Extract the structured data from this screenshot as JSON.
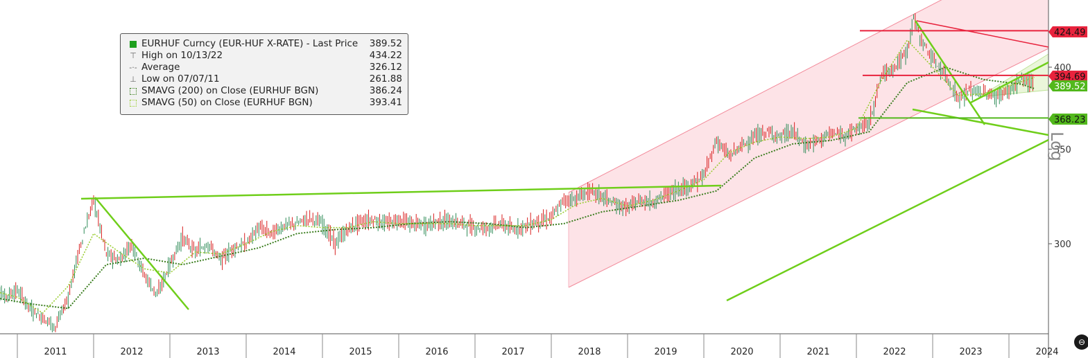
{
  "chart_data": {
    "type": "line",
    "title": "EURHUF Curncy (EUR-HUF X-RATE)",
    "y_scale": "log",
    "ylim": [
      255,
      450
    ],
    "y_ticks": [
      300,
      350,
      400
    ],
    "x_ticks": [
      "2011",
      "2012",
      "2013",
      "2014",
      "2015",
      "2016",
      "2017",
      "2018",
      "2019",
      "2020",
      "2021",
      "2022",
      "2023",
      "2024"
    ],
    "axis_scale_label": "Log",
    "series": [
      {
        "name": "EURHUF Curncy (EUR-HUF X-RATE) - Last Price",
        "color": "#d81e1e",
        "x": [
          "2010-09",
          "2010-11",
          "2011-01",
          "2011-03",
          "2011-05",
          "2011-07",
          "2011-09",
          "2011-11",
          "2012-01",
          "2012-03",
          "2012-05",
          "2012-07",
          "2012-09",
          "2012-11",
          "2013-01",
          "2013-03",
          "2013-05",
          "2013-07",
          "2013-09",
          "2013-11",
          "2014-01",
          "2014-03",
          "2014-05",
          "2014-07",
          "2014-09",
          "2014-11",
          "2015-01",
          "2015-03",
          "2015-05",
          "2015-07",
          "2015-09",
          "2015-11",
          "2016-01",
          "2016-03",
          "2016-05",
          "2016-07",
          "2016-09",
          "2016-11",
          "2017-01",
          "2017-03",
          "2017-05",
          "2017-07",
          "2017-09",
          "2017-11",
          "2018-01",
          "2018-03",
          "2018-05",
          "2018-07",
          "2018-09",
          "2018-11",
          "2019-01",
          "2019-03",
          "2019-05",
          "2019-07",
          "2019-09",
          "2019-11",
          "2020-01",
          "2020-03",
          "2020-05",
          "2020-07",
          "2020-09",
          "2020-11",
          "2021-01",
          "2021-03",
          "2021-05",
          "2021-07",
          "2021-09",
          "2021-11",
          "2022-01",
          "2022-03",
          "2022-05",
          "2022-07",
          "2022-09",
          "2022-10",
          "2022-11",
          "2023-01",
          "2023-03",
          "2023-05",
          "2023-07",
          "2023-09",
          "2023-11",
          "2024-01",
          "2024-03",
          "2024-05"
        ],
        "y": [
          282,
          275,
          278,
          270,
          266,
          262,
          275,
          300,
          322,
          295,
          292,
          300,
          285,
          276,
          290,
          303,
          296,
          300,
          292,
          298,
          300,
          308,
          305,
          309,
          310,
          313,
          310,
          300,
          307,
          311,
          312,
          310,
          312,
          310,
          309,
          311,
          311,
          310,
          308,
          308,
          310,
          307,
          309,
          311,
          313,
          322,
          323,
          327,
          324,
          320,
          318,
          322,
          321,
          325,
          328,
          330,
          335,
          355,
          346,
          352,
          357,
          360,
          357,
          360,
          352,
          355,
          359,
          358,
          362,
          365,
          395,
          400,
          410,
          434,
          420,
          405,
          395,
          380,
          385,
          384,
          381,
          385,
          392,
          389.5
        ]
      },
      {
        "name": "SMAVG (200) on Close (EURHUF BGN)",
        "color": "#3a7d1e",
        "x": [
          "2010-09",
          "2011-03",
          "2011-09",
          "2012-03",
          "2012-09",
          "2013-03",
          "2013-09",
          "2014-03",
          "2014-09",
          "2015-03",
          "2015-09",
          "2016-03",
          "2016-09",
          "2017-03",
          "2017-09",
          "2018-03",
          "2018-09",
          "2019-03",
          "2019-09",
          "2020-03",
          "2020-09",
          "2021-03",
          "2021-09",
          "2022-03",
          "2022-09",
          "2023-03",
          "2023-09",
          "2024-03",
          "2024-05"
        ],
        "y": [
          275,
          272,
          270,
          290,
          293,
          290,
          294,
          298,
          305,
          307,
          308,
          310,
          311,
          310,
          308,
          310,
          316,
          319,
          322,
          327,
          345,
          353,
          355,
          360,
          390,
          400,
          392,
          389,
          386.24
        ]
      },
      {
        "name": "SMAVG (50) on Close (EURHUF BGN)",
        "color": "#9acd32",
        "x": [
          "2010-09",
          "2011-01",
          "2011-05",
          "2011-09",
          "2012-01",
          "2012-05",
          "2012-09",
          "2013-01",
          "2013-05",
          "2013-09",
          "2014-01",
          "2014-05",
          "2014-09",
          "2015-01",
          "2015-05",
          "2015-09",
          "2016-01",
          "2016-05",
          "2016-09",
          "2017-01",
          "2017-05",
          "2017-09",
          "2018-01",
          "2018-05",
          "2018-09",
          "2019-01",
          "2019-05",
          "2019-09",
          "2020-01",
          "2020-05",
          "2020-09",
          "2021-01",
          "2021-05",
          "2021-09",
          "2022-01",
          "2022-05",
          "2022-09",
          "2023-01",
          "2023-05",
          "2023-09",
          "2024-01",
          "2024-05"
        ],
        "y": [
          278,
          275,
          268,
          280,
          305,
          296,
          288,
          286,
          296,
          295,
          300,
          306,
          309,
          308,
          308,
          311,
          310,
          310,
          310,
          309,
          309,
          309,
          312,
          320,
          323,
          319,
          322,
          327,
          333,
          348,
          354,
          357,
          356,
          357,
          362,
          392,
          418,
          400,
          382,
          383,
          388,
          393.41
        ]
      }
    ],
    "legend": {
      "rows": [
        {
          "label": "EURHUF Curncy (EUR-HUF X-RATE) - Last Price",
          "value": "389.52",
          "color": "#1ea01e"
        },
        {
          "label": "High on 10/13/22",
          "value": "434.22"
        },
        {
          "label": "Average",
          "value": "326.12"
        },
        {
          "label": "Low on 07/07/11",
          "value": "261.88"
        },
        {
          "label": "SMAVG (200)  on Close (EURHUF BGN)",
          "value": "386.24"
        },
        {
          "label": "SMAVG (50)  on Close (EURHUF BGN)",
          "value": "393.41"
        }
      ]
    },
    "price_tags": [
      {
        "value": "424.49",
        "color": "#e8233d"
      },
      {
        "value": "394.69",
        "color": "#e8233d"
      },
      {
        "value": "389.52",
        "color": "#52b81c"
      },
      {
        "value": "368.23",
        "color": "#52b81c"
      }
    ],
    "horizontal_levels": [
      {
        "value": 424.49,
        "color": "#e8233d"
      },
      {
        "value": 394.69,
        "color": "#e8233d"
      },
      {
        "value": 368.23,
        "color": "#52b81c"
      }
    ],
    "trend_channel": {
      "color": "#f4a6b0",
      "fill": "#fde4e8",
      "from": "2017-11",
      "to": "2024-06"
    },
    "colors": {
      "up_candle": "#2e8b57",
      "down_candle": "#d81e1e",
      "trendline": "#6fce1a",
      "resistance": "#e8233d"
    }
  }
}
